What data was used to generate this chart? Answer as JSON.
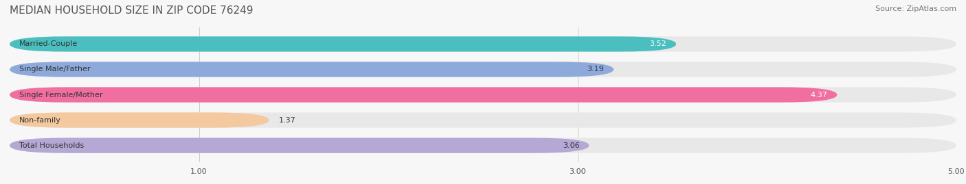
{
  "title": "MEDIAN HOUSEHOLD SIZE IN ZIP CODE 76249",
  "source": "Source: ZipAtlas.com",
  "categories": [
    "Married-Couple",
    "Single Male/Father",
    "Single Female/Mother",
    "Non-family",
    "Total Households"
  ],
  "values": [
    3.52,
    3.19,
    4.37,
    1.37,
    3.06
  ],
  "bar_colors": [
    "#4bbfbf",
    "#8eaadb",
    "#f06fa0",
    "#f5c9a0",
    "#b5a8d5"
  ],
  "bar_bg_color": "#f0f0f0",
  "label_colors": [
    "#ffffff",
    "#555555",
    "#ffffff",
    "#555555",
    "#555555"
  ],
  "xlim": [
    0,
    5.0
  ],
  "xticks": [
    1.0,
    3.0,
    5.0
  ],
  "title_fontsize": 11,
  "source_fontsize": 8,
  "label_fontsize": 8,
  "value_fontsize": 8,
  "background_color": "#f7f7f7",
  "bar_height": 0.6,
  "bar_bg_rounding": 0.3
}
